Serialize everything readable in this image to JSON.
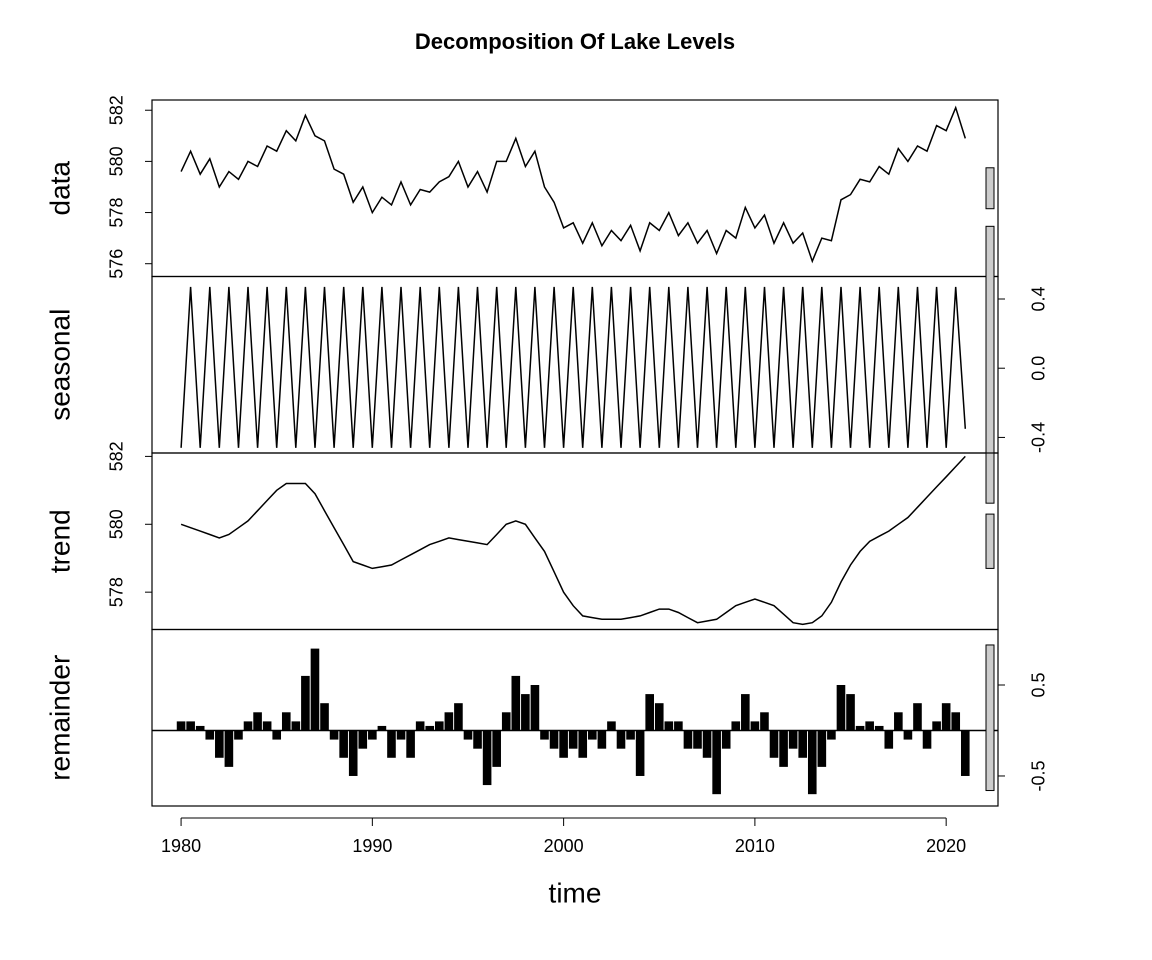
{
  "chart_data": {
    "type": "decomposition",
    "title": "Decomposition Of Lake Levels",
    "xlabel": "time",
    "xlim": [
      1978.48,
      2022.71
    ],
    "xticks": [
      1980,
      1990,
      2000,
      2010,
      2020
    ],
    "x": [
      1980,
      1980.5,
      1981,
      1981.5,
      1982,
      1982.5,
      1983,
      1983.5,
      1984,
      1984.5,
      1985,
      1985.5,
      1986,
      1986.5,
      1987,
      1987.5,
      1988,
      1988.5,
      1989,
      1989.5,
      1990,
      1990.5,
      1991,
      1991.5,
      1992,
      1992.5,
      1993,
      1993.5,
      1994,
      1994.5,
      1995,
      1995.5,
      1996,
      1996.5,
      1997,
      1997.5,
      1998,
      1998.5,
      1999,
      1999.5,
      2000,
      2000.5,
      2001,
      2001.5,
      2002,
      2002.5,
      2003,
      2003.5,
      2004,
      2004.5,
      2005,
      2005.5,
      2006,
      2006.5,
      2007,
      2007.5,
      2008,
      2008.5,
      2009,
      2009.5,
      2010,
      2010.5,
      2011,
      2011.5,
      2012,
      2012.5,
      2013,
      2013.5,
      2014,
      2014.5,
      2015,
      2015.5,
      2016,
      2016.5,
      2017,
      2017.5,
      2018,
      2018.5,
      2019,
      2019.5,
      2020,
      2020.5,
      2021
    ],
    "series": [
      {
        "name": "data",
        "type": "line",
        "side": "left",
        "ylim": [
          575.5,
          582.4
        ],
        "yticks": [
          576,
          578,
          580,
          582
        ],
        "values": [
          579.6,
          580.4,
          579.5,
          580.1,
          579.0,
          579.6,
          579.3,
          580.0,
          579.8,
          580.6,
          580.4,
          581.2,
          580.8,
          581.8,
          581.0,
          580.8,
          579.7,
          579.5,
          578.4,
          579.0,
          578.0,
          578.6,
          578.3,
          579.2,
          578.3,
          578.9,
          578.8,
          579.2,
          579.4,
          580.0,
          579.0,
          579.6,
          578.8,
          580.0,
          580.0,
          580.9,
          579.8,
          580.4,
          579.0,
          578.4,
          577.4,
          577.6,
          576.8,
          577.6,
          576.7,
          577.3,
          576.9,
          577.5,
          576.5,
          577.6,
          577.3,
          578.0,
          577.1,
          577.6,
          576.8,
          577.3,
          576.4,
          577.3,
          577.0,
          578.2,
          577.4,
          577.9,
          576.8,
          577.6,
          576.8,
          577.2,
          576.1,
          577.0,
          576.9,
          578.5,
          578.7,
          579.3,
          579.2,
          579.8,
          579.5,
          580.5,
          580.0,
          580.6,
          580.4,
          581.4,
          581.2,
          582.1,
          580.9
        ]
      },
      {
        "name": "seasonal",
        "type": "line",
        "side": "right",
        "ylim": [
          -0.49,
          0.53
        ],
        "yticks": [
          -0.4,
          {
            "value": 0,
            "label": "0.0"
          },
          0.4
        ],
        "values": [
          -0.46,
          0.47,
          -0.46,
          0.47,
          -0.46,
          0.47,
          -0.46,
          0.47,
          -0.46,
          0.47,
          -0.46,
          0.47,
          -0.46,
          0.47,
          -0.46,
          0.47,
          -0.46,
          0.47,
          -0.46,
          0.47,
          -0.46,
          0.47,
          -0.46,
          0.47,
          -0.46,
          0.47,
          -0.46,
          0.47,
          -0.46,
          0.47,
          -0.46,
          0.47,
          -0.46,
          0.47,
          -0.46,
          0.47,
          -0.46,
          0.47,
          -0.46,
          0.47,
          -0.46,
          0.47,
          -0.46,
          0.47,
          -0.46,
          0.47,
          -0.46,
          0.47,
          -0.46,
          0.47,
          -0.46,
          0.47,
          -0.46,
          0.47,
          -0.46,
          0.47,
          -0.46,
          0.47,
          -0.46,
          0.47,
          -0.46,
          0.47,
          -0.46,
          0.47,
          -0.46,
          0.47,
          -0.46,
          0.47,
          -0.46,
          0.47,
          -0.46,
          0.47,
          -0.46,
          0.47,
          -0.46,
          0.47,
          -0.46,
          0.47,
          -0.46,
          0.47,
          -0.46,
          0.47,
          -0.35
        ]
      },
      {
        "name": "trend",
        "type": "line",
        "side": "left",
        "ylim": [
          576.9,
          582.1
        ],
        "yticks": [
          578,
          580,
          582
        ],
        "values": [
          580.0,
          579.9,
          579.8,
          579.7,
          579.6,
          579.7,
          579.9,
          580.1,
          580.4,
          580.7,
          581.0,
          581.2,
          581.2,
          581.2,
          580.9,
          580.4,
          579.9,
          579.4,
          578.9,
          578.8,
          578.7,
          578.75,
          578.8,
          578.95,
          579.1,
          579.25,
          579.4,
          579.5,
          579.6,
          579.55,
          579.5,
          579.45,
          579.4,
          579.7,
          580.0,
          580.1,
          580.0,
          579.6,
          579.2,
          578.6,
          578.0,
          577.6,
          577.3,
          577.25,
          577.2,
          577.2,
          577.2,
          577.25,
          577.3,
          577.4,
          577.5,
          577.5,
          577.4,
          577.25,
          577.1,
          577.15,
          577.2,
          577.4,
          577.6,
          577.7,
          577.8,
          577.7,
          577.6,
          577.35,
          577.1,
          577.05,
          577.1,
          577.3,
          577.7,
          578.3,
          578.8,
          579.2,
          579.5,
          579.65,
          579.8,
          580.0,
          580.2,
          580.5,
          580.8,
          581.1,
          581.4,
          581.7,
          582.0
        ]
      },
      {
        "name": "remainder",
        "type": "bar",
        "side": "right",
        "ylim": [
          -0.83,
          1.11
        ],
        "yticks": [
          -0.5,
          0.5
        ],
        "values": [
          0.1,
          0.1,
          0.05,
          -0.1,
          -0.3,
          -0.4,
          -0.1,
          0.1,
          0.2,
          0.1,
          -0.1,
          0.2,
          0.1,
          0.6,
          0.9,
          0.3,
          -0.1,
          -0.3,
          -0.5,
          -0.2,
          -0.1,
          0.05,
          -0.3,
          -0.1,
          -0.3,
          0.1,
          0.05,
          0.1,
          0.2,
          0.3,
          -0.1,
          -0.2,
          -0.6,
          -0.4,
          0.2,
          0.6,
          0.4,
          0.5,
          -0.1,
          -0.2,
          -0.3,
          -0.2,
          -0.3,
          -0.1,
          -0.2,
          0.1,
          -0.2,
          -0.1,
          -0.5,
          0.4,
          0.3,
          0.1,
          0.1,
          -0.2,
          -0.2,
          -0.3,
          -0.7,
          -0.2,
          0.1,
          0.4,
          0.1,
          0.2,
          -0.3,
          -0.4,
          -0.2,
          -0.3,
          -0.7,
          -0.4,
          -0.1,
          0.5,
          0.4,
          0.05,
          0.1,
          0.05,
          -0.2,
          0.2,
          -0.1,
          0.3,
          -0.2,
          0.1,
          0.3,
          0.2,
          -0.5
        ]
      }
    ]
  }
}
